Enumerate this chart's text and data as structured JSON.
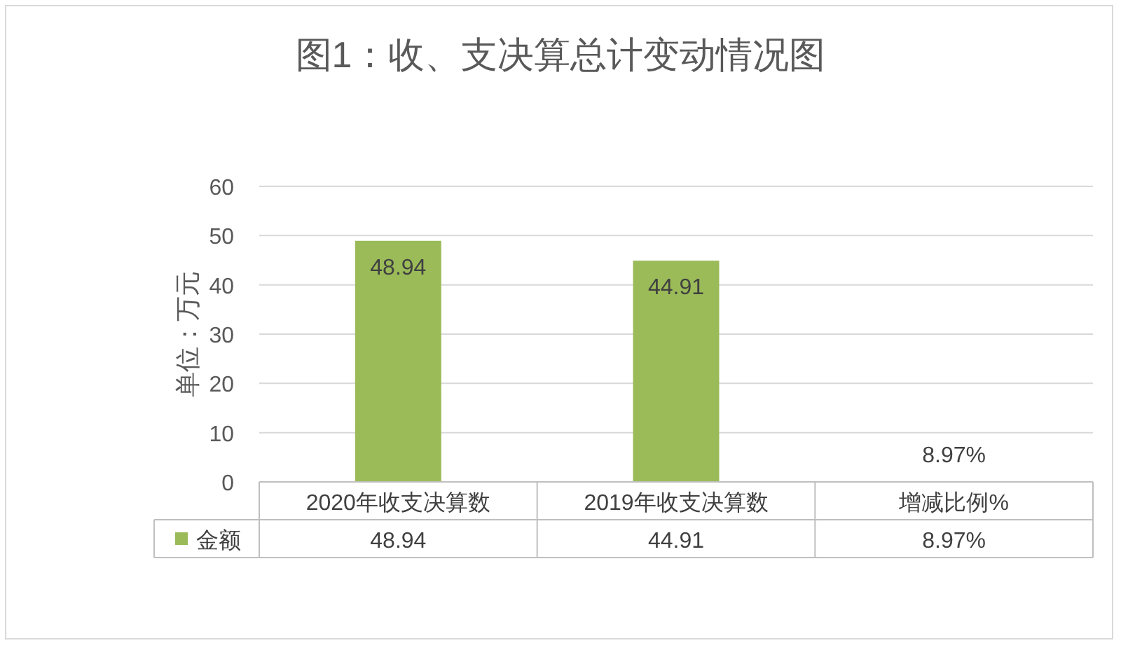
{
  "chart_data": {
    "type": "bar",
    "title": "图1：收、支决算总计变动情况图",
    "ylabel": "单位：万元",
    "categories": [
      "2020年收支决算数",
      "2019年收支决算数",
      "增减比例%"
    ],
    "series": [
      {
        "name": "金额",
        "color": "#9bbb59",
        "values": [
          48.94,
          44.91,
          0.0897
        ],
        "value_labels": [
          "48.94",
          "44.91",
          "8.97%"
        ]
      }
    ],
    "ylim": [
      0,
      60
    ],
    "yticks": [
      0,
      10,
      20,
      30,
      40,
      50,
      60
    ],
    "grid": "y",
    "legend": "bottom"
  }
}
